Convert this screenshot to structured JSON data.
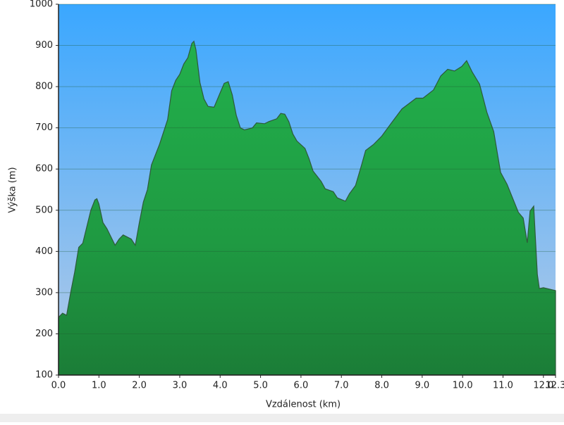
{
  "chart_data": {
    "type": "area",
    "xlabel": "Vzdálenost   (km)",
    "ylabel": "Výška (m)",
    "x": [
      0.0,
      0.1,
      0.2,
      0.3,
      0.4,
      0.5,
      0.6,
      0.7,
      0.8,
      0.9,
      0.95,
      1.0,
      1.1,
      1.2,
      1.3,
      1.4,
      1.5,
      1.6,
      1.7,
      1.8,
      1.9,
      2.0,
      2.1,
      2.2,
      2.3,
      2.5,
      2.7,
      2.8,
      2.9,
      3.0,
      3.1,
      3.2,
      3.3,
      3.35,
      3.4,
      3.5,
      3.6,
      3.7,
      3.85,
      4.0,
      4.1,
      4.2,
      4.3,
      4.4,
      4.5,
      4.6,
      4.8,
      4.9,
      5.1,
      5.2,
      5.4,
      5.5,
      5.6,
      5.7,
      5.8,
      5.9,
      6.1,
      6.2,
      6.3,
      6.5,
      6.6,
      6.8,
      6.9,
      7.1,
      7.2,
      7.35,
      7.5,
      7.6,
      7.8,
      8.0,
      8.24,
      8.5,
      8.85,
      9.02,
      9.28,
      9.46,
      9.63,
      9.8,
      9.98,
      10.1,
      10.24,
      10.42,
      10.6,
      10.77,
      10.94,
      11.1,
      11.38,
      11.5,
      11.6,
      11.67,
      11.76,
      11.85,
      11.9,
      12.0,
      12.3
    ],
    "series": [
      {
        "name": "Výška",
        "color": "#22a84a",
        "values": [
          240,
          250,
          245,
          300,
          350,
          410,
          420,
          460,
          500,
          525,
          528,
          515,
          470,
          455,
          435,
          415,
          430,
          440,
          435,
          430,
          415,
          470,
          520,
          550,
          610,
          660,
          720,
          790,
          815,
          830,
          855,
          870,
          905,
          910,
          890,
          810,
          770,
          752,
          750,
          785,
          808,
          812,
          780,
          730,
          700,
          695,
          700,
          712,
          710,
          715,
          722,
          735,
          733,
          715,
          685,
          668,
          650,
          625,
          595,
          570,
          552,
          545,
          530,
          522,
          540,
          560,
          610,
          645,
          660,
          680,
          712,
          746,
          772,
          772,
          792,
          826,
          842,
          838,
          849,
          863,
          835,
          806,
          738,
          691,
          592,
          563,
          495,
          481,
          421,
          498,
          510,
          344,
          310,
          312,
          305
        ]
      }
    ],
    "xlim": [
      0,
      12.3
    ],
    "xticks": [
      {
        "value": 0,
        "label": "0.0"
      },
      {
        "value": 1,
        "label": "1.0"
      },
      {
        "value": 2,
        "label": "2.0"
      },
      {
        "value": 3,
        "label": "3.0"
      },
      {
        "value": 4,
        "label": "4.0"
      },
      {
        "value": 5,
        "label": "5.0"
      },
      {
        "value": 6,
        "label": "6.0"
      },
      {
        "value": 7,
        "label": "7.0"
      },
      {
        "value": 8,
        "label": "8.0"
      },
      {
        "value": 9,
        "label": "9.0"
      },
      {
        "value": 10,
        "label": "10.0"
      },
      {
        "value": 11,
        "label": "11.0"
      },
      {
        "value": 12,
        "label": "12.0"
      },
      12.3
    ],
    "ylim": [
      100,
      1000
    ],
    "yticks": [
      100,
      200,
      300,
      400,
      500,
      600,
      700,
      800,
      900,
      1000
    ],
    "grid": true
  }
}
